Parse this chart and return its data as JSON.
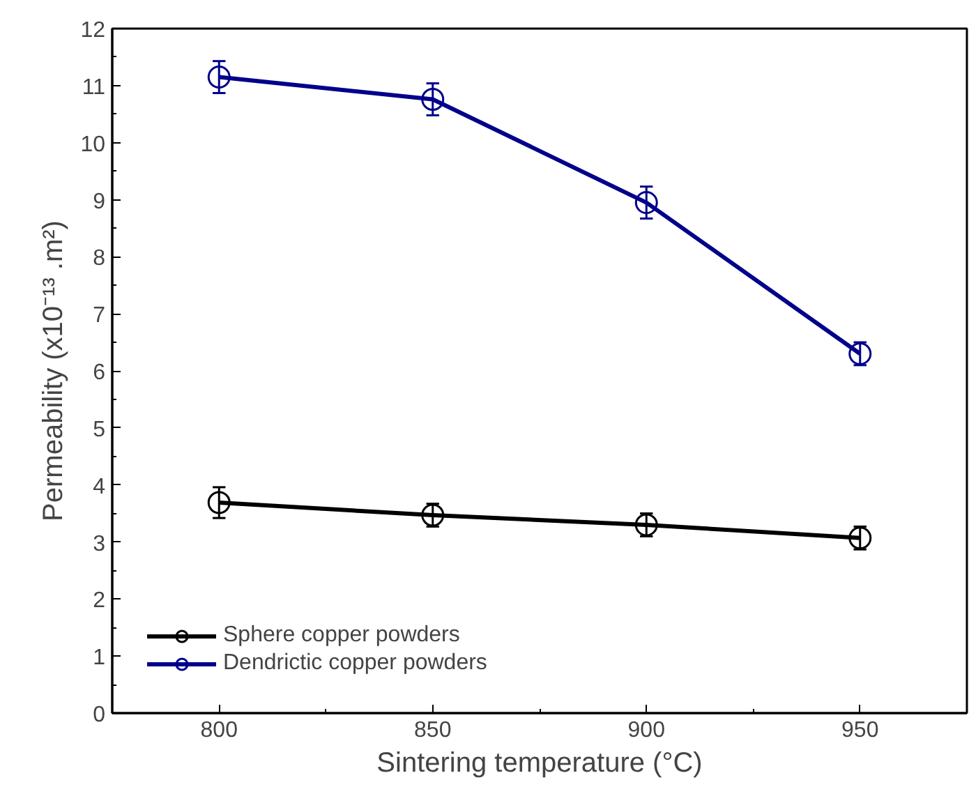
{
  "chart_data": {
    "type": "line",
    "xlabel": "Sintering temperature (°C)",
    "ylabel": "Permeability (x10⁻¹³ .m²)",
    "x": [
      800,
      850,
      900,
      950
    ],
    "series": [
      {
        "name": "Sphere copper powders",
        "color": "#000000",
        "values": [
          3.69,
          3.47,
          3.3,
          3.07
        ],
        "errors": [
          0.27,
          0.2,
          0.2,
          0.2
        ]
      },
      {
        "name": "Dendrictic copper powders",
        "color": "#00008b",
        "values": [
          11.15,
          10.76,
          8.95,
          6.3
        ],
        "errors": [
          0.28,
          0.28,
          0.28,
          0.2
        ]
      }
    ],
    "xlim": [
      775,
      975
    ],
    "xticks": [
      800,
      850,
      900,
      950
    ],
    "ylim": [
      0,
      12
    ],
    "yticks": [
      0,
      1,
      2,
      3,
      4,
      5,
      6,
      7,
      8,
      9,
      10,
      11,
      12
    ],
    "grid": false,
    "legend": "bottom left",
    "marker": "circle",
    "line_style": "solid"
  }
}
